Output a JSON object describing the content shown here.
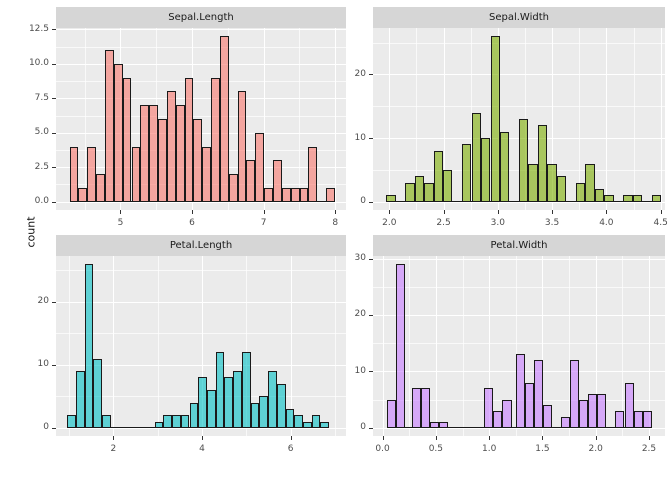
{
  "axis_title_y": "count",
  "style": {
    "page_bg": "#FFFFFF",
    "panel_bg": "#EBEBEB",
    "strip_bg": "#D6D6D6",
    "strip_text_color": "#1A1A1A",
    "grid_major_color": "#FFFFFF",
    "tick_mark_color": "#333333",
    "tick_label_color": "#4D4D4D",
    "axis_title_color": "#111111",
    "bar_stroke": "#1A1A1A",
    "fill_alpha": 0.6
  },
  "chart_data": {
    "type": "histogram",
    "layout": "2x2 facet grid, free scales, grey panels with white gridlines",
    "ylabel": "count",
    "facets": [
      {
        "title": "Sepal.Length",
        "fill": "#F8766D",
        "fill_alpha": 0.6,
        "x_range": [
          4.1,
          8.15
        ],
        "y_range": [
          -0.6,
          12.6
        ],
        "x_ticks": [
          {
            "v": 5,
            "label": "5"
          },
          {
            "v": 6,
            "label": "6"
          },
          {
            "v": 7,
            "label": "7"
          },
          {
            "v": 8,
            "label": "8"
          }
        ],
        "x_minor": [
          4.5,
          5.5,
          6.5,
          7.5
        ],
        "y_ticks": [
          {
            "v": 0,
            "label": "0.0"
          },
          {
            "v": 2.5,
            "label": "2.5"
          },
          {
            "v": 5,
            "label": "5.0"
          },
          {
            "v": 7.5,
            "label": "7.5"
          },
          {
            "v": 10,
            "label": "10.0"
          },
          {
            "v": 12.5,
            "label": "12.5"
          }
        ],
        "y_minor": [
          1.25,
          3.75,
          6.25,
          8.75,
          11.25
        ],
        "bin_width": 0.1235,
        "bars": [
          {
            "start": 4.29,
            "counts": [
              4,
              1,
              4,
              2,
              11,
              10,
              9,
              4,
              7,
              7,
              6,
              8,
              7,
              9,
              6,
              4,
              9,
              12,
              2,
              8,
              3,
              5,
              1,
              3,
              1,
              1,
              1,
              4,
              0,
              1
            ]
          }
        ]
      },
      {
        "title": "Sepal.Width",
        "fill": "#7CAE00",
        "fill_alpha": 0.6,
        "x_range": [
          1.85,
          4.54
        ],
        "y_range": [
          -1.3,
          27.3
        ],
        "x_ticks": [
          {
            "v": 2.0,
            "label": "2.0"
          },
          {
            "v": 2.5,
            "label": "2.5"
          },
          {
            "v": 3.0,
            "label": "3.0"
          },
          {
            "v": 3.5,
            "label": "3.5"
          },
          {
            "v": 4.0,
            "label": "4.0"
          },
          {
            "v": 4.5,
            "label": "4.5"
          }
        ],
        "x_minor": [
          2.25,
          2.75,
          3.25,
          3.75,
          4.25
        ],
        "y_ticks": [
          {
            "v": 0,
            "label": "0"
          },
          {
            "v": 10,
            "label": "10"
          },
          {
            "v": 20,
            "label": "20"
          }
        ],
        "y_minor": [
          5,
          15,
          25
        ],
        "bin_width": 0.0875,
        "bars": [
          {
            "start": 1.97,
            "counts": [
              1,
              0,
              3,
              4,
              3,
              8,
              5,
              0,
              9,
              14,
              10,
              26,
              11,
              0,
              13,
              6,
              12,
              6,
              4,
              0,
              3,
              6,
              2,
              1,
              0,
              1,
              1,
              0,
              1
            ]
          }
        ]
      },
      {
        "title": "Petal.Length",
        "fill": "#00BFC4",
        "fill_alpha": 0.6,
        "x_range": [
          0.705,
          7.25
        ],
        "y_range": [
          -1.3,
          27.3
        ],
        "x_ticks": [
          {
            "v": 2,
            "label": "2"
          },
          {
            "v": 4,
            "label": "4"
          },
          {
            "v": 6,
            "label": "6"
          }
        ],
        "x_minor": [
          1,
          3,
          5,
          7
        ],
        "y_ticks": [
          {
            "v": 0,
            "label": "0"
          },
          {
            "v": 10,
            "label": "10"
          },
          {
            "v": 20,
            "label": "20"
          }
        ],
        "y_minor": [
          5,
          15,
          25
        ],
        "bin_width": 0.197,
        "bars": [
          {
            "start": 0.96,
            "counts": [
              2,
              9,
              26,
              11,
              2,
              0,
              0,
              0,
              0,
              0,
              1,
              2,
              2,
              2,
              4,
              8,
              6,
              12,
              8,
              9,
              12,
              4,
              5,
              9,
              7,
              3,
              2,
              1,
              2,
              1
            ]
          }
        ]
      },
      {
        "title": "Petal.Width",
        "fill": "#C77CFF",
        "fill_alpha": 0.6,
        "x_range": [
          -0.09,
          2.65
        ],
        "y_range": [
          -1.45,
          30.45
        ],
        "x_ticks": [
          {
            "v": 0.0,
            "label": "0.0"
          },
          {
            "v": 0.5,
            "label": "0.5"
          },
          {
            "v": 1.0,
            "label": "1.0"
          },
          {
            "v": 1.5,
            "label": "1.5"
          },
          {
            "v": 2.0,
            "label": "2.0"
          },
          {
            "v": 2.5,
            "label": "2.5"
          }
        ],
        "x_minor": [
          0.25,
          0.75,
          1.25,
          1.75,
          2.25
        ],
        "y_ticks": [
          {
            "v": 0,
            "label": "0"
          },
          {
            "v": 10,
            "label": "10"
          },
          {
            "v": 20,
            "label": "20"
          },
          {
            "v": 30,
            "label": "30"
          }
        ],
        "y_minor": [
          5,
          15,
          25
        ],
        "bin_width": 0.085,
        "bars": [
          {
            "start": 0.045,
            "counts": [
              5,
              29
            ]
          },
          {
            "start": 0.275,
            "counts": [
              7,
              7,
              1,
              1
            ]
          },
          {
            "start": 0.955,
            "counts": [
              7,
              3,
              5
            ]
          },
          {
            "start": 1.25,
            "counts": [
              13,
              8,
              12,
              4
            ]
          },
          {
            "start": 1.675,
            "counts": [
              2,
              12,
              5,
              6,
              6
            ]
          },
          {
            "start": 2.185,
            "counts": [
              3,
              8,
              3,
              3
            ]
          }
        ]
      }
    ]
  }
}
